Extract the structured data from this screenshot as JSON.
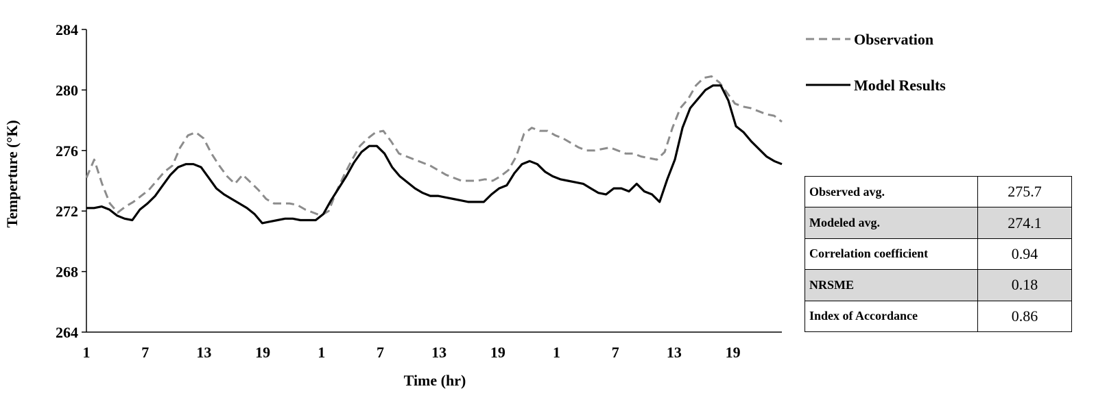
{
  "chart_data": {
    "type": "line",
    "xlabel": "Time (hr)",
    "ylabel": "Temperture (°K)",
    "ylim": [
      264,
      284
    ],
    "y_ticks": [
      264,
      268,
      272,
      276,
      280,
      284
    ],
    "x_tick_labels": [
      "1",
      "7",
      "13",
      "19",
      "1",
      "7",
      "13",
      "19",
      "1",
      "7",
      "13",
      "19"
    ],
    "x_tick_hours": [
      1,
      7,
      13,
      19,
      25,
      31,
      37,
      43,
      49,
      55,
      61,
      67
    ],
    "xlim": [
      1,
      72
    ],
    "grid": false,
    "legend_position": "top-right",
    "series": [
      {
        "name": "Observation",
        "style": "dashed",
        "color": "#8c8c8c",
        "values": [
          274.2,
          275.4,
          273.8,
          272.5,
          271.9,
          272.3,
          272.6,
          273.0,
          273.4,
          274.0,
          274.6,
          275.0,
          276.2,
          277.0,
          277.2,
          276.8,
          275.8,
          275.0,
          274.3,
          273.8,
          274.4,
          273.9,
          273.4,
          272.8,
          272.5,
          272.5,
          272.5,
          272.4,
          272.1,
          271.9,
          271.7,
          272.0,
          273.3,
          274.4,
          275.4,
          276.3,
          276.8,
          277.2,
          277.3,
          276.6,
          275.8,
          275.6,
          275.4,
          275.2,
          275.0,
          274.7,
          274.4,
          274.2,
          274.0,
          274.0,
          274.0,
          274.1,
          274.0,
          274.3,
          274.7,
          275.6,
          277.1,
          277.5,
          277.3,
          277.3,
          277.0,
          276.8,
          276.5,
          276.2,
          276.0,
          276.0,
          276.1,
          276.2,
          276.0,
          275.8,
          275.8,
          275.6,
          275.5,
          275.4,
          275.9,
          277.5,
          278.8,
          279.4,
          280.3,
          280.8,
          280.9,
          280.5,
          279.8,
          279.1,
          278.9,
          278.8,
          278.6,
          278.4,
          278.3,
          277.9
        ]
      },
      {
        "name": "Model Results",
        "style": "solid",
        "color": "#000000",
        "values": [
          272.2,
          272.2,
          272.3,
          272.1,
          271.7,
          271.5,
          271.4,
          272.1,
          272.5,
          273.0,
          273.7,
          274.4,
          274.9,
          275.1,
          275.1,
          274.9,
          274.2,
          273.5,
          273.1,
          272.8,
          272.5,
          272.2,
          271.8,
          271.2,
          271.3,
          271.4,
          271.5,
          271.5,
          271.4,
          271.4,
          271.4,
          271.8,
          272.7,
          273.5,
          274.3,
          275.2,
          275.9,
          276.3,
          276.3,
          275.8,
          274.9,
          274.3,
          273.9,
          273.5,
          273.2,
          273.0,
          273.0,
          272.9,
          272.8,
          272.7,
          272.6,
          272.6,
          272.6,
          273.1,
          273.5,
          273.7,
          274.5,
          275.1,
          275.3,
          275.1,
          274.6,
          274.3,
          274.1,
          274.0,
          273.9,
          273.8,
          273.5,
          273.2,
          273.1,
          273.5,
          273.5,
          273.3,
          273.8,
          273.3,
          273.1,
          272.6,
          274.1,
          275.4,
          277.5,
          278.8,
          279.4,
          280.0,
          280.3,
          280.3,
          279.3,
          277.6,
          277.2,
          276.6,
          276.1,
          275.6,
          275.3,
          275.1
        ]
      }
    ]
  },
  "stats_table": {
    "rows": [
      {
        "label": "Observed avg.",
        "value": "275.7"
      },
      {
        "label": "Modeled avg.",
        "value": "274.1"
      },
      {
        "label": "Correlation coefficient",
        "value": "0.94"
      },
      {
        "label": "NRSME",
        "value": "0.18"
      },
      {
        "label": "Index of Accordance",
        "value": "0.86"
      }
    ],
    "shaded_color": "#d9d9d9"
  }
}
